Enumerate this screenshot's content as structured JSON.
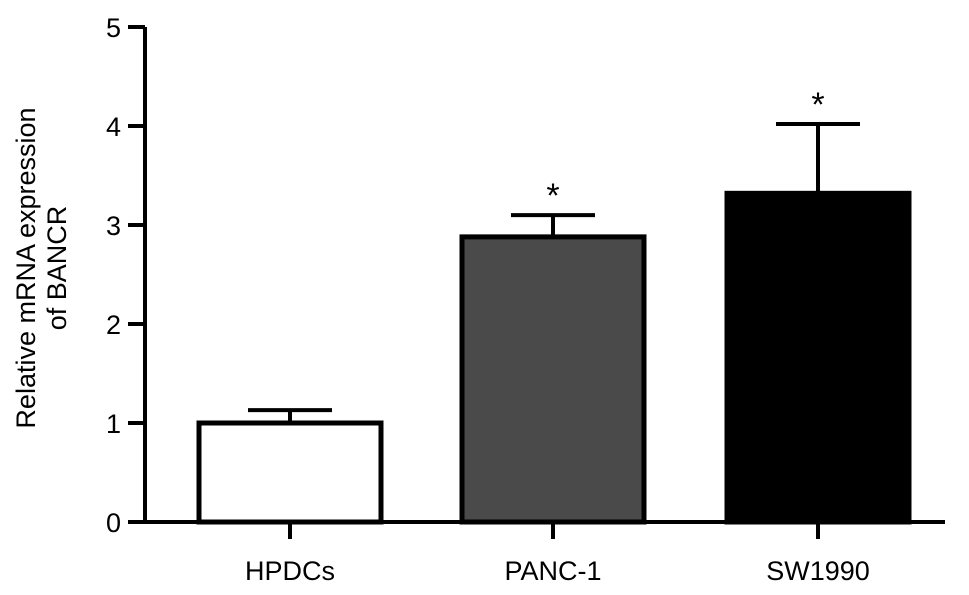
{
  "chart_data": {
    "type": "bar",
    "title": "",
    "xlabel": "",
    "ylabel_lines": [
      "Relative mRNA expression",
      "of BANCR"
    ],
    "ylim": [
      0,
      5
    ],
    "yticks": [
      0,
      1,
      2,
      3,
      4,
      5
    ],
    "ytick_labels": [
      "0",
      "1",
      "2",
      "3",
      "4",
      "5"
    ],
    "categories": [
      "HPDCs",
      "PANC-1",
      "SW1990"
    ],
    "values": [
      1.0,
      2.88,
      3.32
    ],
    "error_upper": [
      0.13,
      0.22,
      0.7
    ],
    "significance": [
      "",
      "*",
      "*"
    ],
    "bar_colors": [
      "#ffffff",
      "#4a4a4a",
      "#000000"
    ],
    "edge_color": "#000000",
    "grid": false,
    "legend": "none"
  }
}
